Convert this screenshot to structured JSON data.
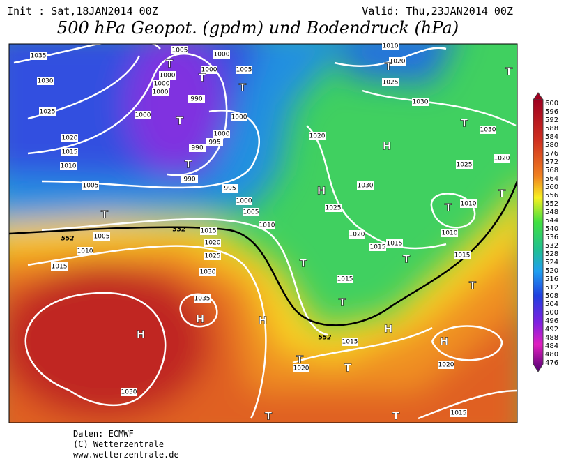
{
  "header": {
    "init": "Init : Sat,18JAN2014 00Z",
    "valid": "Valid: Thu,23JAN2014 00Z",
    "title": "500 hPa Geopot. (gpdm) und Bodendruck (hPa)"
  },
  "map": {
    "isobar_labels": [
      1035,
      1030,
      1025,
      1020,
      1015,
      1010,
      1005,
      1005,
      1000,
      1000,
      1000,
      1000,
      1005,
      1000,
      1000,
      990,
      990,
      990,
      995,
      1000,
      995,
      1000,
      1005,
      1010,
      1015,
      1020,
      1025,
      1030,
      1035,
      1005,
      1010,
      1015,
      1030,
      1000,
      1020,
      1030,
      1025,
      1020,
      1015,
      1015,
      1015,
      1015,
      1020,
      1020,
      1015,
      1010,
      1010,
      1015,
      1025,
      1020,
      1030,
      1030,
      1025,
      1020,
      1010
    ],
    "contour_labels": [
      552,
      552,
      552
    ],
    "pressure_centers": [
      "T",
      "T",
      "T",
      "T",
      "T",
      "T",
      "T",
      "T",
      "T",
      "T",
      "T",
      "T",
      "T",
      "T",
      "T",
      "T",
      "T",
      "T",
      "T",
      "H",
      "H",
      "H",
      "H",
      "H",
      "H",
      "H"
    ]
  },
  "colorbar": {
    "labels": [
      600,
      596,
      592,
      588,
      584,
      580,
      576,
      572,
      568,
      564,
      560,
      556,
      552,
      548,
      544,
      540,
      536,
      532,
      528,
      524,
      520,
      516,
      512,
      508,
      504,
      500,
      496,
      492,
      488,
      484,
      480,
      476
    ]
  },
  "footer": {
    "source": "Daten: ECMWF",
    "copyright": "(C) Wetterzentrale",
    "url": "www.wetterzentrale.de"
  }
}
